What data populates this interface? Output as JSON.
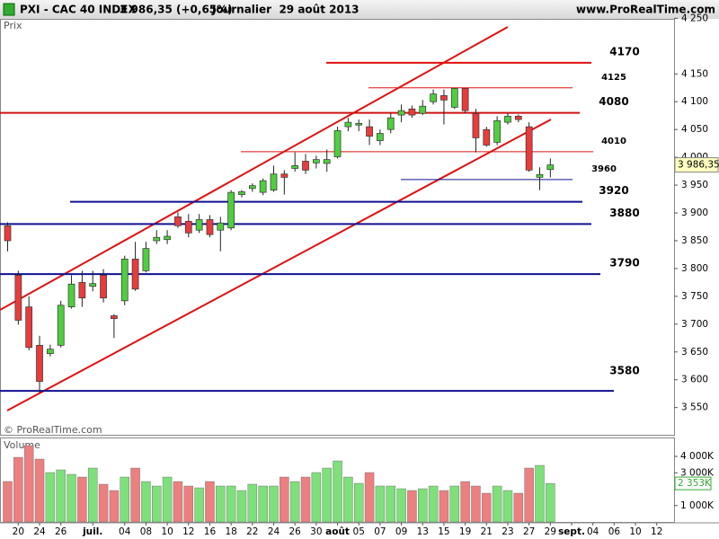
{
  "header": {
    "symbol": "PXI - CAC 40 INDEX",
    "change": "3 986,35 (+0,65%)",
    "period": "Journalier  29 août 2013",
    "site": "www.ProRealTime.com"
  },
  "chart_data": [
    {
      "type": "candlestick",
      "title": "Prix",
      "watermark": "© ProRealTime.com",
      "categories": [
        null,
        "20",
        null,
        "24",
        null,
        "26",
        null,
        null,
        "juil.",
        null,
        null,
        "04",
        null,
        "08",
        null,
        "10",
        null,
        "12",
        null,
        "16",
        null,
        "18",
        null,
        "22",
        null,
        "24",
        null,
        "26",
        null,
        "30",
        null,
        "août",
        null,
        "05",
        null,
        "07",
        null,
        "09",
        null,
        "13",
        null,
        "15",
        null,
        "19",
        null,
        "21",
        null,
        "23",
        null,
        "27",
        null,
        "29",
        null,
        "sept.",
        null,
        "04",
        null,
        "06",
        null,
        "10",
        null,
        "12"
      ],
      "open": [
        3877,
        3788,
        3731,
        3662,
        3647,
        3662,
        3731,
        3775,
        3768,
        3788,
        3715,
        3742,
        3817,
        3796,
        3850,
        3852,
        3893,
        3885,
        3869,
        3888,
        3869,
        3873,
        3933,
        3944,
        3937,
        3941,
        3970,
        3980,
        3993,
        3990,
        3989,
        4001,
        4055,
        4058,
        4055,
        4030,
        4050,
        4076,
        4087,
        4079,
        4100,
        4111,
        4090,
        4124,
        4079,
        4050,
        4027,
        4063,
        4074,
        4055,
        3964,
        3978,
        null,
        null,
        null,
        null,
        null,
        null,
        null,
        null,
        null,
        null
      ],
      "high": [
        3883,
        3796,
        3750,
        3679,
        3663,
        3742,
        3788,
        3796,
        3796,
        3799,
        3718,
        3823,
        3848,
        3848,
        3869,
        3869,
        3901,
        3898,
        3898,
        3896,
        3893,
        3941,
        3941,
        3953,
        3962,
        3985,
        3977,
        4009,
        4006,
        4003,
        4014,
        4055,
        4071,
        4068,
        4068,
        4050,
        4079,
        4095,
        4093,
        4103,
        4122,
        4122,
        4124,
        4124,
        4087,
        4055,
        4074,
        4079,
        4077,
        4063,
        3982,
        3998,
        null,
        null,
        null,
        null,
        null,
        null,
        null,
        null,
        null,
        null
      ],
      "low": [
        3831,
        3699,
        3653,
        3577,
        3642,
        3658,
        3728,
        3731,
        3759,
        3739,
        3675,
        3734,
        3760,
        3793,
        3844,
        3844,
        3873,
        3856,
        3864,
        3856,
        3831,
        3869,
        3928,
        3938,
        3932,
        3938,
        3933,
        3974,
        3970,
        3980,
        3974,
        3998,
        4047,
        4047,
        4022,
        4022,
        4043,
        4063,
        4071,
        4076,
        4095,
        4059,
        4087,
        4079,
        4009,
        4019,
        4022,
        4059,
        4063,
        3974,
        3941,
        3964,
        null,
        null,
        null,
        null,
        null,
        null,
        null,
        null,
        null,
        null
      ],
      "close": [
        3850,
        3707,
        3658,
        3597,
        3655,
        3734,
        3772,
        3747,
        3773,
        3747,
        3710,
        3817,
        3763,
        3836,
        3856,
        3858,
        3877,
        3864,
        3888,
        3861,
        3882,
        3937,
        3938,
        3949,
        3958,
        3970,
        3964,
        3985,
        3977,
        3996,
        3996,
        4048,
        4063,
        4061,
        4038,
        4043,
        4071,
        4084,
        4076,
        4092,
        4114,
        4103,
        4124,
        4084,
        4035,
        4022,
        4066,
        4074,
        4068,
        3977,
        3969,
        3986.35,
        null,
        null,
        null,
        null,
        null,
        null,
        null,
        null,
        null,
        null
      ],
      "up_color": "#4fce3f",
      "down_color": "#e83c3c",
      "ylim": [
        3501,
        4249
      ],
      "yticks": [
        {
          "value": 3550,
          "label": "3 550"
        },
        {
          "value": 3600,
          "label": "3 600"
        },
        {
          "value": 3650,
          "label": "3 650"
        },
        {
          "value": 3700,
          "label": "3 700"
        },
        {
          "value": 3750,
          "label": "3 750"
        },
        {
          "value": 3800,
          "label": "3 800"
        },
        {
          "value": 3850,
          "label": "3 850"
        },
        {
          "value": 3900,
          "label": "3 900"
        },
        {
          "value": 3950,
          "label": "3 950"
        },
        {
          "value": 4000,
          "label": "4 000"
        },
        {
          "value": 4050,
          "label": "4 050"
        },
        {
          "value": 4100,
          "label": "4 100"
        },
        {
          "value": 4150,
          "label": "4 150"
        },
        {
          "value": 4250,
          "label": "4 250"
        }
      ],
      "last": {
        "value": 3986.35,
        "label": "3 986,35"
      },
      "levels": [
        {
          "value": 4170,
          "color": "#e01010"
        },
        {
          "value": 4125,
          "color": "#e01010"
        },
        {
          "value": 4080,
          "color": "#d01010"
        },
        {
          "value": 4010,
          "color": "#e01010"
        },
        {
          "value": 3960,
          "color": "#101090"
        },
        {
          "value": 3920,
          "color": "#101090"
        },
        {
          "value": 3880,
          "color": "#101090"
        },
        {
          "value": 3790,
          "color": "#101090"
        },
        {
          "value": 3580,
          "color": "#101090"
        }
      ]
    },
    {
      "type": "bar",
      "title": "Volume",
      "values": [
        2470,
        3945,
        4658,
        3836,
        3014,
        3178,
        2904,
        2740,
        3288,
        2301,
        1918,
        2740,
        3288,
        2466,
        2192,
        2740,
        2466,
        2192,
        2082,
        2466,
        2192,
        2192,
        1918,
        2301,
        2192,
        2192,
        2740,
        2466,
        2740,
        3014,
        3288,
        3726,
        2740,
        2356,
        3014,
        2192,
        2192,
        2027,
        1918,
        2027,
        2192,
        1918,
        2192,
        2466,
        2192,
        1753,
        2192,
        1918,
        1753,
        3288,
        3452,
        2353,
        null,
        null,
        null,
        null,
        null,
        null,
        null,
        null,
        null,
        null
      ],
      "up_color": "#7ee07a",
      "down_color": "#ec7f7f",
      "ylim": [
        0,
        5100
      ],
      "yticks": [
        {
          "value": 1000,
          "label": "1 000K"
        },
        {
          "value": 3000,
          "label": "3 000K"
        },
        {
          "value": 4000,
          "label": "4 000K"
        }
      ],
      "last": {
        "value": 2353,
        "label": "2 353K"
      }
    }
  ]
}
